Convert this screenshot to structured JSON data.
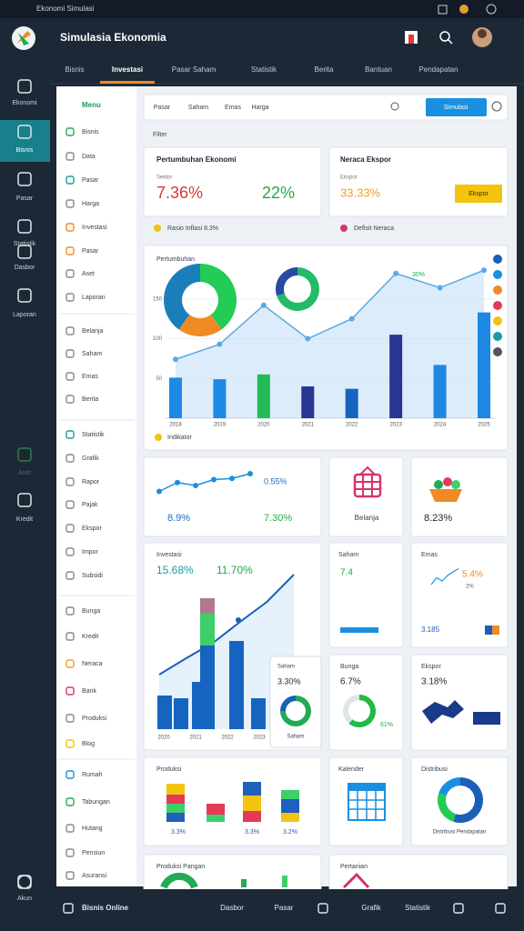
{
  "status_bar": {
    "title": "Ekonomi Simulasi"
  },
  "header": {
    "title": "Simulasia Ekonomia"
  },
  "tabs": {
    "items": [
      "Bisnis",
      "Investasi",
      "Pasar Saham",
      "Statistik",
      "Berita",
      "Bantuan",
      "Pendapatan"
    ],
    "active": 1
  },
  "rail": {
    "items": [
      "Ekonomi",
      "Bisnis",
      "Pasar",
      "Statistik",
      "Dasbor",
      "Laporan",
      "Aset",
      "Kredit",
      "Akun"
    ],
    "active": 1
  },
  "sidebar": {
    "title": "Menu",
    "items": [
      "Bisnis",
      "Data",
      "Pasar",
      "Harga",
      "Investasi",
      "Pasar",
      "Aset",
      "Laporan",
      "Belanja",
      "Saham",
      "Emas",
      "Berita",
      "Statistik",
      "Grafik",
      "Rapor",
      "Pajak",
      "Ekspor",
      "Impor",
      "Subsidi",
      "Bunga",
      "Kredit",
      "Neraca",
      "Bank",
      "Produksi",
      "Blog",
      "Rumah",
      "Tabungan",
      "Hutang",
      "Pensiun",
      "Asuransi"
    ]
  },
  "toolbar": {
    "tabs": [
      "Pasar",
      "Saham",
      "Emas",
      "Harga"
    ],
    "button": "Simulasi",
    "filter": "Filter"
  },
  "growth_card": {
    "title": "Pertumbuhan Ekonomi",
    "label": "Sektor",
    "value1": "7.36%",
    "value2": "22%",
    "footer": "Rasio Inflasi 8.3%"
  },
  "export_card": {
    "title": "Neraca Ekspor",
    "label": "Ekspor",
    "value": "33.33%",
    "button": "Ekspor",
    "footer": "Defisit Neraca"
  },
  "main_chart": {
    "title": "Pertumbuhan",
    "categories": [
      "2018",
      "2019",
      "2020",
      "2021",
      "2022",
      "2023",
      "2024",
      "2025"
    ],
    "bars": [
      51,
      49,
      55,
      40,
      37,
      105,
      67,
      133
    ],
    "bar_colors": [
      "#1e88e5",
      "#1e88e5",
      "#22bb55",
      "#283593",
      "#1565c0",
      "#283593",
      "#1e88e5",
      "#1e88e5"
    ],
    "line": [
      74,
      93,
      142,
      100,
      125,
      182,
      164,
      186
    ],
    "line_color": "#5aa9e6",
    "ylim": [
      0,
      200
    ],
    "yticks": [
      50,
      100,
      150
    ],
    "annotation": "30%",
    "legend": "Indikator",
    "donuts": [
      {
        "values": [
          40,
          20,
          40
        ],
        "colors": [
          "#22cc55",
          "#f08a24",
          "#1a7fb8"
        ]
      },
      {
        "values": [
          70,
          30
        ],
        "colors": [
          "#22bb66",
          "#2a4aa0"
        ]
      }
    ]
  },
  "trend_card": {
    "line": [
      30,
      45,
      40,
      50,
      52,
      60
    ],
    "value1": "0.55%",
    "value2": "8.9%",
    "value3": "7.30%"
  },
  "basket_card": {
    "label": "Belanja"
  },
  "food_card": {
    "value": "8.23%"
  },
  "invest_card": {
    "title": "Investasi",
    "value1": "15.68%",
    "value2": "11.70%",
    "stacks": [
      [
        37
      ],
      [
        34
      ],
      [
        52
      ],
      [
        92,
        35,
        17
      ],
      [
        97
      ],
      [
        34
      ]
    ],
    "stack_colors": [
      "#1565c0",
      "#3ecf6a",
      "#b07a8a"
    ],
    "line": [
      60,
      78,
      95,
      118,
      140,
      170
    ],
    "xlabels": [
      "2020",
      "2021",
      "2022",
      "2023"
    ]
  },
  "overlay_card": {
    "title": "Saham",
    "value": "3.30%",
    "donut": [
      75,
      25
    ],
    "colors": [
      "#22aa55",
      "#1a5fb8"
    ],
    "label": "Saham"
  },
  "stock_card": {
    "title": "Saham",
    "value": "7.4"
  },
  "gold_card": {
    "title": "Emas",
    "value": "5.4%",
    "sub": "2%",
    "line": [
      10,
      25,
      18,
      30,
      38,
      45
    ],
    "footer": "3.185"
  },
  "rate_card": {
    "title": "Bunga",
    "value": "6.7%",
    "donut": [
      61,
      39
    ],
    "colors": [
      "#22bb44",
      "#dfe6ea"
    ],
    "donut_label": "61%"
  },
  "export2_card": {
    "title": "Ekspor",
    "value": "3.18%"
  },
  "production_card": {
    "title": "Produksi",
    "stacks": [
      [
        10,
        10,
        10,
        12
      ],
      [
        8,
        12
      ],
      [
        12,
        17,
        15
      ],
      [
        10,
        15,
        10
      ]
    ],
    "colors": [
      "#1e5fbf",
      "#3ecf6a",
      "#e53958",
      "#f2c40f"
    ],
    "captions": [
      "3.3%",
      "3.3%",
      "3.2%"
    ]
  },
  "calendar_card": {
    "title": "Kalender"
  },
  "distribution_card": {
    "title": "Distribusi",
    "donut": [
      55,
      25,
      20
    ],
    "colors": [
      "#1a5fb8",
      "#22cc55",
      "#1a8fe0"
    ],
    "footer": "Distribusi Pendapatan"
  },
  "bottom_cards": [
    "Produksi Pangan",
    "Pertanian"
  ],
  "bottom_bar": {
    "items": [
      "Bisnis Online",
      "Dasbor",
      "Pasar",
      "Grafik",
      "Statistik"
    ]
  }
}
